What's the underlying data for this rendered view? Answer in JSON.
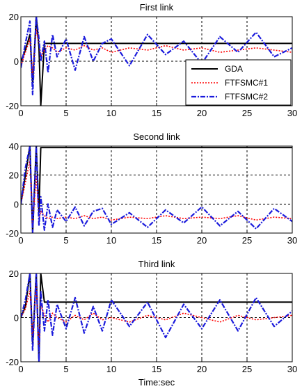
{
  "chart_data": [
    {
      "type": "line",
      "title": "First link",
      "x": [
        0,
        0.5,
        1.0,
        1.3,
        1.7,
        2.0,
        2.2,
        2.6,
        3.0,
        3.5,
        4.0,
        5.0,
        6.0,
        7.0,
        8.0,
        9.0,
        10.0,
        12.0,
        14.0,
        16.0,
        18.0,
        20.0,
        22.0,
        24.0,
        26.0,
        28.0,
        30.0
      ],
      "xlim": [
        0,
        30
      ],
      "ylim": [
        -20,
        20
      ],
      "xticks": [
        0,
        5,
        10,
        15,
        20,
        25,
        30
      ],
      "yticks": [
        -20,
        0,
        20
      ],
      "grid": true,
      "legend_position": "right",
      "series": [
        {
          "name": "GDA",
          "color": "#000000",
          "style": "solid",
          "values": [
            0,
            5,
            12,
            -10,
            20,
            6,
            -20,
            8,
            8,
            8,
            8,
            8,
            8,
            8,
            8,
            8,
            8,
            8,
            8,
            8,
            8,
            8,
            8,
            8,
            8,
            8,
            8
          ]
        },
        {
          "name": "FTFSMC#1",
          "color": "#ff0000",
          "style": "dotted",
          "values": [
            -2,
            4,
            10,
            -6,
            14,
            8,
            2,
            5,
            7,
            6,
            4,
            6,
            5,
            7,
            5,
            6,
            4,
            6,
            5,
            7,
            5,
            6,
            4,
            5,
            6,
            5,
            4
          ]
        },
        {
          "name": "FTFSMC#2",
          "color": "#1a1adc",
          "style": "dashdot",
          "values": [
            -3,
            8,
            18,
            -15,
            20,
            10,
            0,
            9,
            -5,
            12,
            2,
            10,
            -4,
            11,
            0,
            8,
            10,
            -2,
            12,
            3,
            9,
            -1,
            11,
            4,
            13,
            2,
            6
          ]
        }
      ]
    },
    {
      "type": "line",
      "title": "Second link",
      "x": [
        0,
        0.5,
        1.0,
        1.3,
        1.7,
        2.0,
        2.2,
        2.6,
        3.0,
        3.5,
        4.0,
        5.0,
        6.0,
        7.0,
        8.0,
        9.0,
        10.0,
        12.0,
        14.0,
        16.0,
        18.0,
        20.0,
        22.0,
        24.0,
        26.0,
        28.0,
        30.0
      ],
      "xlim": [
        0,
        30
      ],
      "ylim": [
        -20,
        40
      ],
      "xticks": [
        0,
        5,
        10,
        15,
        20,
        25,
        30
      ],
      "yticks": [
        -20,
        0,
        20,
        40
      ],
      "grid": true,
      "series": [
        {
          "name": "GDA",
          "color": "#000000",
          "style": "solid",
          "values": [
            0,
            20,
            40,
            -20,
            40,
            -5,
            39,
            39,
            39,
            39,
            39,
            39,
            39,
            39,
            39,
            39,
            39,
            39,
            39,
            39,
            39,
            39,
            39,
            39,
            39,
            39,
            39
          ]
        },
        {
          "name": "FTFSMC#1",
          "color": "#ff0000",
          "style": "dotted",
          "values": [
            0,
            15,
            30,
            -15,
            20,
            -10,
            -5,
            -8,
            -10,
            -9,
            -10,
            -9,
            -10,
            -8,
            -10,
            -9,
            -11,
            -9,
            -10,
            -8,
            -10,
            -9,
            -10,
            -8,
            -11,
            -9,
            -10
          ]
        },
        {
          "name": "FTFSMC#2",
          "color": "#1a1adc",
          "style": "dashdot",
          "values": [
            0,
            25,
            40,
            -20,
            40,
            -15,
            5,
            -18,
            0,
            -16,
            -4,
            -12,
            -2,
            -15,
            -5,
            -3,
            -14,
            -6,
            -16,
            -4,
            -13,
            -2,
            -15,
            -5,
            -17,
            -3,
            -12
          ]
        }
      ]
    },
    {
      "type": "line",
      "title": "Third link",
      "x": [
        0,
        0.5,
        1.0,
        1.3,
        1.7,
        2.0,
        2.2,
        2.6,
        3.0,
        3.5,
        4.0,
        5.0,
        6.0,
        7.0,
        8.0,
        9.0,
        10.0,
        12.0,
        14.0,
        16.0,
        18.0,
        20.0,
        22.0,
        24.0,
        26.0,
        28.0,
        30.0
      ],
      "xlim": [
        0,
        30
      ],
      "ylim": [
        -20,
        20
      ],
      "xticks": [
        0,
        5,
        10,
        15,
        20,
        25,
        30
      ],
      "yticks": [
        -20,
        0,
        20
      ],
      "xlabel": "Time:sec",
      "grid": true,
      "series": [
        {
          "name": "GDA",
          "color": "#000000",
          "style": "solid",
          "values": [
            0,
            5,
            20,
            -12,
            20,
            -20,
            20,
            7,
            7,
            7,
            7,
            7,
            7,
            7,
            7,
            7,
            7,
            7,
            7,
            7,
            7,
            7,
            7,
            7,
            7,
            7,
            7
          ]
        },
        {
          "name": "FTFSMC#1",
          "color": "#ff0000",
          "style": "dotted",
          "values": [
            0,
            4,
            12,
            -8,
            16,
            -14,
            6,
            1,
            -2,
            2,
            0,
            -2,
            1,
            -1,
            2,
            -1,
            0,
            -2,
            1,
            -1,
            2,
            0,
            -2,
            1,
            -1,
            0,
            1
          ]
        },
        {
          "name": "FTFSMC#2",
          "color": "#1a1adc",
          "style": "dashdot",
          "values": [
            0,
            8,
            20,
            -15,
            20,
            -20,
            12,
            -6,
            8,
            -8,
            6,
            -5,
            9,
            -7,
            5,
            -6,
            8,
            -4,
            7,
            -9,
            6,
            -5,
            8,
            -6,
            9,
            -4,
            3
          ]
        }
      ]
    }
  ]
}
